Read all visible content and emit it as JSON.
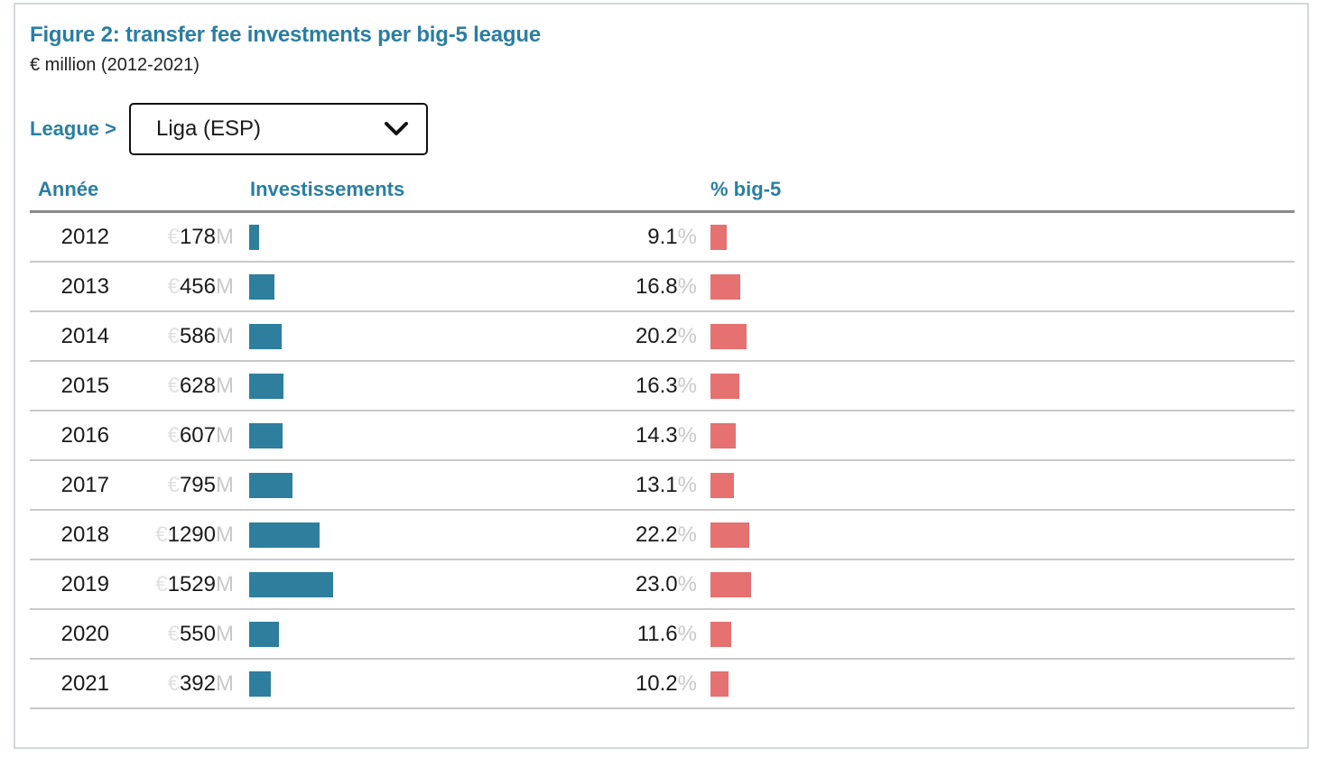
{
  "figure": {
    "title": "Figure 2: transfer fee investments per big-5 league",
    "subtitle": "€ million (2012-2021)"
  },
  "league_selector": {
    "label": "League >",
    "selected": "Liga (ESP)",
    "icon": "chevron-down-icon"
  },
  "table": {
    "columns": [
      "Année",
      "Investissements",
      "% big-5"
    ],
    "currency_prefix": "€",
    "million_suffix": "M",
    "pct_suffix": "%",
    "rows": [
      {
        "year": "2012",
        "investment": "178",
        "pct": "9.1"
      },
      {
        "year": "2013",
        "investment": "456",
        "pct": "16.8"
      },
      {
        "year": "2014",
        "investment": "586",
        "pct": "20.2"
      },
      {
        "year": "2015",
        "investment": "628",
        "pct": "16.3"
      },
      {
        "year": "2016",
        "investment": "607",
        "pct": "14.3"
      },
      {
        "year": "2017",
        "investment": "795",
        "pct": "13.1"
      },
      {
        "year": "2018",
        "investment": "1290",
        "pct": "22.2"
      },
      {
        "year": "2019",
        "investment": "1529",
        "pct": "23.0"
      },
      {
        "year": "2020",
        "investment": "550",
        "pct": "11.6"
      },
      {
        "year": "2021",
        "investment": "392",
        "pct": "10.2"
      }
    ]
  },
  "colors": {
    "accent_teal": "#2b7ea1",
    "investment_bar": "#2e7f9e",
    "pct_bar": "#e57170",
    "muted_text": "#c9c9c9"
  },
  "chart_data": {
    "type": "bar",
    "orientation": "horizontal",
    "title": "Figure 2: transfer fee investments per big-5 league",
    "subtitle": "€ million (2012-2021)",
    "selected_filter": "Liga (ESP)",
    "categories": [
      "2012",
      "2013",
      "2014",
      "2015",
      "2016",
      "2017",
      "2018",
      "2019",
      "2020",
      "2021"
    ],
    "series": [
      {
        "name": "Investissements (€M)",
        "color": "#2e7f9e",
        "values": [
          178,
          456,
          586,
          628,
          607,
          795,
          1290,
          1529,
          550,
          392
        ]
      },
      {
        "name": "% big-5",
        "color": "#e57170",
        "values": [
          9.1,
          16.8,
          20.2,
          16.3,
          14.3,
          13.1,
          22.2,
          23.0,
          11.6,
          10.2
        ]
      }
    ],
    "legend_position": "none",
    "grid": false
  }
}
